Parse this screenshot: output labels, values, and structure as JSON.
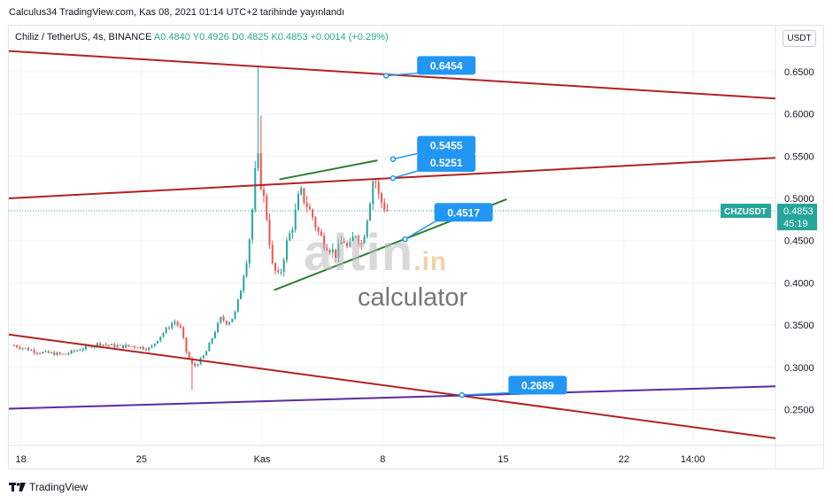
{
  "header": {
    "published": "Calculus34 TradingView.com, Kas 08, 2021 01:14 UTC+2 tarihinde yayınlandı"
  },
  "legend": {
    "symbol": "Chiliz / TetherUS, 4s, BINANCE",
    "open_label": "A",
    "open": "0.4840",
    "high_label": "Y",
    "high": "0.4926",
    "low_label": "D",
    "low": "0.4825",
    "close_label": "K",
    "close": "0.4853",
    "change": "+0.0014 (+0.29%)"
  },
  "currency": "USDT",
  "watermark": {
    "brand": "altin",
    "tld": ".in",
    "sub": "calculator"
  },
  "footer": {
    "brand": "TradingView"
  },
  "colors": {
    "up": "#26a69a",
    "down": "#ef5350",
    "channel": "#b22222",
    "wedge": "#2e7d32",
    "support": "#5b2c9f",
    "callout": "#2196f3",
    "price_label": "#26a69a"
  },
  "chart_data": {
    "type": "candlestick",
    "x_ticks": [
      "18",
      "25",
      "Kas",
      "8",
      "15",
      "22",
      "14:00"
    ],
    "x_tick_days": [
      18,
      25,
      32,
      39,
      46,
      53,
      57
    ],
    "y_ticks": [
      "0.2500",
      "0.3000",
      "0.3500",
      "0.4000",
      "0.4500",
      "0.5000",
      "0.5500",
      "0.6000",
      "0.6500"
    ],
    "y_tick_values": [
      0.25,
      0.3,
      0.35,
      0.4,
      0.45,
      0.5,
      0.55,
      0.6,
      0.65
    ],
    "xlim_days": [
      17.3,
      61.8
    ],
    "ylim": [
      0.2075,
      0.7045
    ],
    "last_price": {
      "symbol": "CHZUSDT",
      "value": "0.4853",
      "countdown": "45:19",
      "y": 0.4853
    },
    "candle_anchors": [
      [
        17.6,
        0.326
      ],
      [
        19,
        0.318
      ],
      [
        20.5,
        0.315
      ],
      [
        21.5,
        0.322
      ],
      [
        22.5,
        0.328
      ],
      [
        23.5,
        0.325
      ],
      [
        24.5,
        0.325
      ],
      [
        25.5,
        0.322
      ],
      [
        26,
        0.335
      ],
      [
        26.9,
        0.355
      ],
      [
        27.3,
        0.345
      ],
      [
        27.6,
        0.318
      ],
      [
        28,
        0.3
      ],
      [
        28.5,
        0.31
      ],
      [
        28.8,
        0.32
      ],
      [
        29.2,
        0.34
      ],
      [
        29.6,
        0.358
      ],
      [
        30,
        0.352
      ],
      [
        30.4,
        0.362
      ],
      [
        30.8,
        0.395
      ],
      [
        31.2,
        0.44
      ],
      [
        31.5,
        0.5
      ],
      [
        31.7,
        0.56
      ],
      [
        31.9,
        0.52
      ],
      [
        32.2,
        0.49
      ],
      [
        32.6,
        0.42
      ],
      [
        33.0,
        0.405
      ],
      [
        33.4,
        0.445
      ],
      [
        33.8,
        0.47
      ],
      [
        34.2,
        0.51
      ],
      [
        34.4,
        0.5
      ],
      [
        34.9,
        0.48
      ],
      [
        35.2,
        0.462
      ],
      [
        35.6,
        0.448
      ],
      [
        36,
        0.44
      ],
      [
        36.3,
        0.433
      ],
      [
        36.7,
        0.453
      ],
      [
        37,
        0.438
      ],
      [
        37.4,
        0.46
      ],
      [
        37.8,
        0.445
      ],
      [
        38.2,
        0.49
      ],
      [
        38.5,
        0.53
      ],
      [
        38.8,
        0.5
      ],
      [
        39.1,
        0.49
      ],
      [
        39.3,
        0.4853
      ]
    ],
    "lines": [
      {
        "name": "upper-channel",
        "color": "#b22222",
        "from": [
          17.3,
          0.6745
        ],
        "to": [
          61.8,
          0.6183
        ]
      },
      {
        "name": "lower-channel",
        "color": "#b22222",
        "from": [
          17.3,
          0.3388
        ],
        "to": [
          61.8,
          0.216
        ]
      },
      {
        "name": "middle-channel",
        "color": "#b22222",
        "from": [
          17.3,
          0.5
        ],
        "to": [
          61.8,
          0.548
        ]
      },
      {
        "name": "wedge-upper",
        "color": "#2e7d32",
        "from": [
          33.0,
          0.5225
        ],
        "to": [
          38.7,
          0.545
        ]
      },
      {
        "name": "wedge-lower",
        "color": "#2e7d32",
        "from": [
          32.7,
          0.3915
        ],
        "to": [
          46.2,
          0.499
        ]
      },
      {
        "name": "support-line",
        "color": "#5b2c9f",
        "from": [
          17.3,
          0.251
        ],
        "to": [
          61.8,
          0.2775
        ]
      }
    ],
    "annotations": [
      {
        "label": "0.6454",
        "anchor": [
          39.2,
          0.6452
        ],
        "box": [
          41.0,
          0.6685
        ]
      },
      {
        "label": "0.5455",
        "anchor": [
          39.6,
          0.5465
        ],
        "box": [
          41.0,
          0.574
        ]
      },
      {
        "label": "0.5251",
        "anchor": [
          39.6,
          0.524
        ],
        "box": [
          41.0,
          0.5535
        ]
      },
      {
        "label": "0.4517",
        "anchor": [
          40.3,
          0.4517
        ],
        "box": [
          42.0,
          0.4945
        ]
      },
      {
        "label": "0.2689",
        "anchor": [
          43.6,
          0.2672
        ],
        "box": [
          46.3,
          0.29
        ]
      }
    ]
  }
}
